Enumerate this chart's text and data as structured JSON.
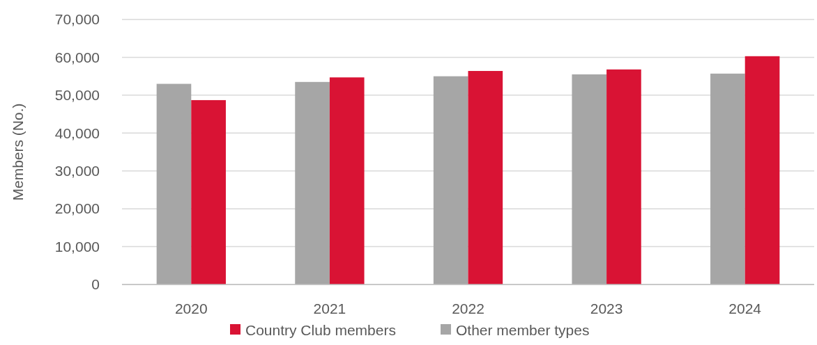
{
  "chart_data": {
    "type": "bar",
    "ylabel": "Members (No.)",
    "categories": [
      "2020",
      "2021",
      "2022",
      "2023",
      "2024"
    ],
    "series": [
      {
        "name": "Other member types",
        "color": "#a6a6a6",
        "values": [
          53000,
          53500,
          55000,
          55500,
          55700
        ]
      },
      {
        "name": "Country Club members",
        "color": "#d91334",
        "values": [
          48700,
          54700,
          56400,
          56800,
          60300
        ]
      }
    ],
    "ylim": [
      0,
      70000
    ],
    "yticks": [
      {
        "value": 0,
        "label": "0"
      },
      {
        "value": 10000,
        "label": "10,000"
      },
      {
        "value": 20000,
        "label": "20,000"
      },
      {
        "value": 30000,
        "label": "30,000"
      },
      {
        "value": 40000,
        "label": "40,000"
      },
      {
        "value": 50000,
        "label": "50,000"
      },
      {
        "value": 60000,
        "label": "60,000"
      },
      {
        "value": 70000,
        "label": "70,000"
      }
    ],
    "grid": "y",
    "legend": "bottom"
  }
}
